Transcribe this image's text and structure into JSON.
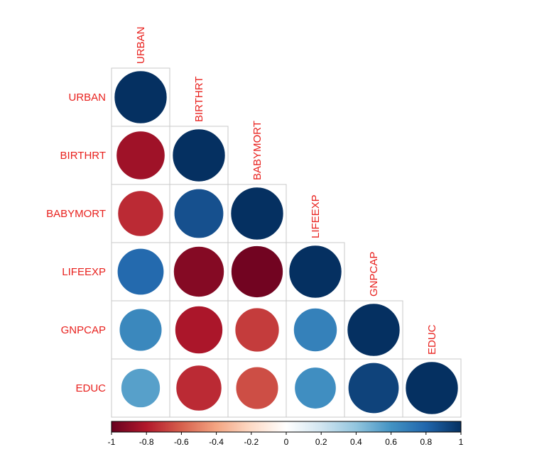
{
  "chart_data": {
    "type": "heatmap",
    "subtype": "correlation-matrix-lower-circle",
    "variables": [
      "URBAN",
      "BIRTHRT",
      "BABYMORT",
      "LIFEEXP",
      "GNPCAP",
      "EDUC"
    ],
    "matrix": [
      [
        1.0,
        -0.85,
        -0.75,
        0.78,
        0.65,
        0.55
      ],
      [
        -0.85,
        1.0,
        0.88,
        -0.92,
        -0.82,
        -0.75
      ],
      [
        -0.75,
        0.88,
        1.0,
        -0.97,
        -0.7,
        -0.65
      ],
      [
        0.78,
        -0.92,
        -0.97,
        1.0,
        0.68,
        0.62
      ],
      [
        0.65,
        -0.82,
        -0.7,
        0.68,
        1.0,
        0.93
      ],
      [
        0.55,
        -0.75,
        -0.65,
        0.62,
        0.93,
        1.0
      ]
    ],
    "label_color": "#e8211e",
    "colorbar": {
      "range": [
        -1,
        1
      ],
      "ticks": [
        "-1",
        "-0.8",
        "-0.6",
        "-0.4",
        "-0.2",
        "0",
        "0.2",
        "0.4",
        "0.6",
        "0.8",
        "1"
      ],
      "color_stops": [
        "#67001f",
        "#b2182b",
        "#d6604d",
        "#f4a582",
        "#fddbc7",
        "#ffffff",
        "#d1e5f0",
        "#92c5de",
        "#4393c3",
        "#2166ac",
        "#053061"
      ]
    }
  }
}
